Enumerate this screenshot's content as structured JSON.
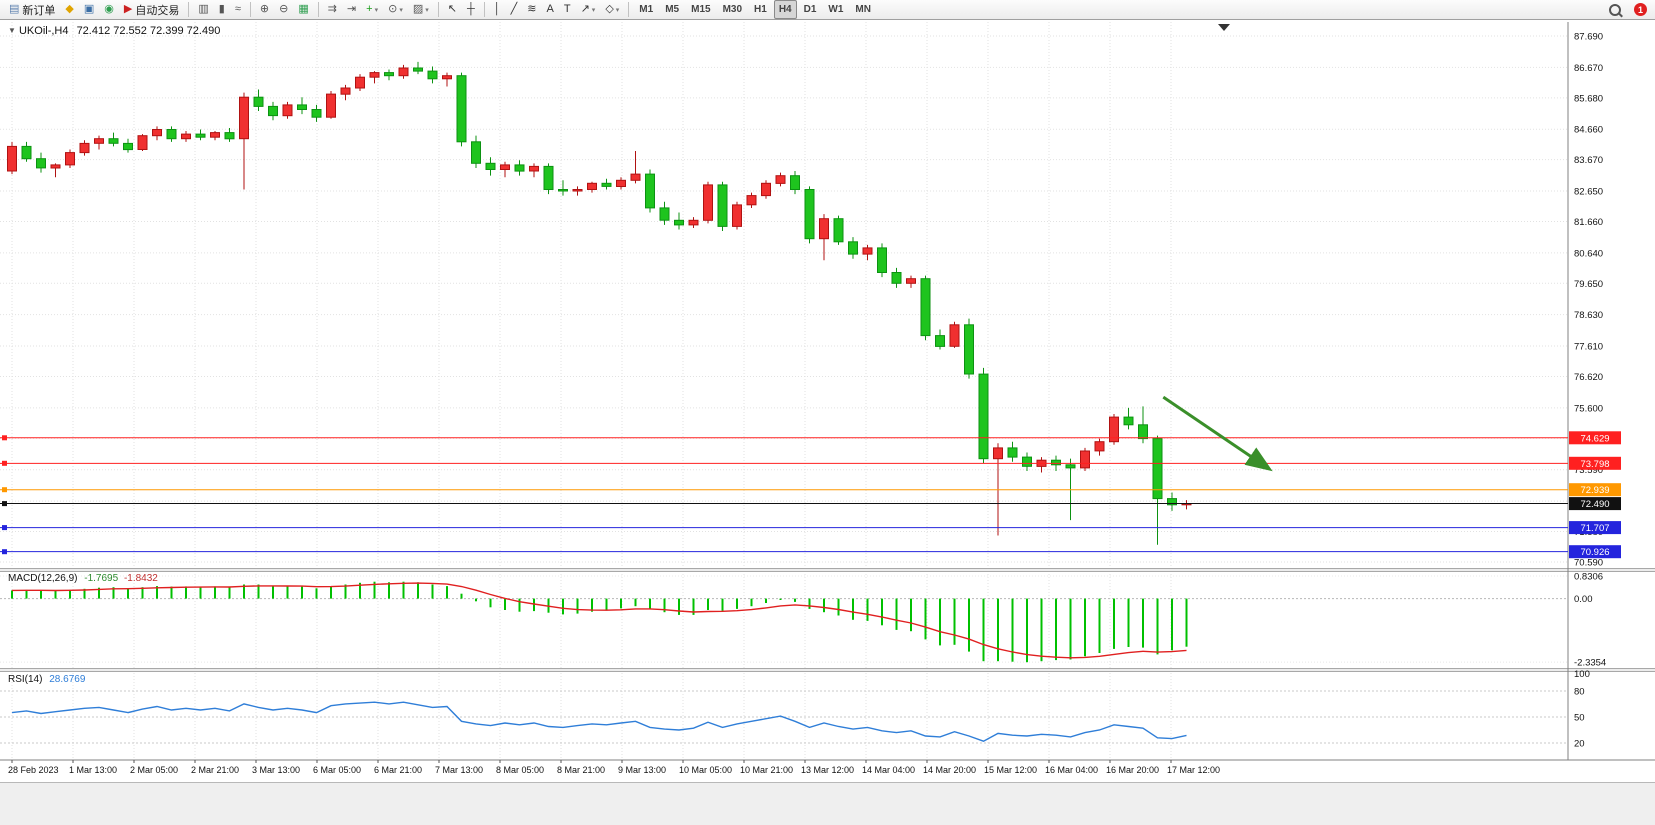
{
  "toolbar": {
    "badge_label": "1",
    "items": [
      {
        "type": "btn",
        "name": "new-order-button",
        "glyph": "▤",
        "glyph_color": "#5b7fae",
        "label": "新订单"
      },
      {
        "type": "btn",
        "name": "chart-window-icon",
        "glyph": "◆",
        "glyph_color": "#e0a400"
      },
      {
        "type": "btn",
        "name": "market-watch-icon",
        "glyph": "▣",
        "glyph_color": "#3b6ea5"
      },
      {
        "type": "btn",
        "name": "signals-icon",
        "glyph": "◉",
        "glyph_color": "#2e9e4f"
      },
      {
        "type": "btn",
        "name": "auto-trading-button",
        "glyph": "▶",
        "glyph_color": "#cc2222",
        "label": "自动交易"
      },
      {
        "type": "sep"
      },
      {
        "type": "btn",
        "name": "bar-chart-button",
        "glyph": "▥",
        "glyph_color": "#555"
      },
      {
        "type": "btn",
        "name": "candlestick-chart-button",
        "glyph": "▮",
        "glyph_color": "#555"
      },
      {
        "type": "btn",
        "name": "line-chart-button",
        "glyph": "≈",
        "glyph_color": "#555"
      },
      {
        "type": "sep"
      },
      {
        "type": "btn",
        "name": "zoom-in-button",
        "glyph": "⊕",
        "glyph_color": "#555"
      },
      {
        "type": "btn",
        "name": "zoom-out-button",
        "glyph": "⊖",
        "glyph_color": "#555"
      },
      {
        "type": "btn",
        "name": "tile-windows-button",
        "glyph": "▦",
        "glyph_color": "#2e9e4f"
      },
      {
        "type": "sep"
      },
      {
        "type": "btn",
        "name": "auto-scroll-button",
        "glyph": "⇉",
        "glyph_color": "#555"
      },
      {
        "type": "btn",
        "name": "chart-shift-button",
        "glyph": "⇥",
        "glyph_color": "#555"
      },
      {
        "type": "btn",
        "name": "add-indicator-button",
        "glyph": "+",
        "glyph_color": "#1d9e1d",
        "caret": true
      },
      {
        "type": "btn",
        "name": "period-button",
        "glyph": "⊙",
        "glyph_color": "#555",
        "caret": true
      },
      {
        "type": "btn",
        "name": "template-button",
        "glyph": "▨",
        "glyph_color": "#555",
        "caret": true
      },
      {
        "type": "sep"
      },
      {
        "type": "btn",
        "name": "cursor-button",
        "glyph": "↖",
        "glyph_color": "#333"
      },
      {
        "type": "btn",
        "name": "crosshair-button",
        "glyph": "┼",
        "glyph_color": "#333"
      },
      {
        "type": "sep"
      },
      {
        "type": "btn",
        "name": "vertical-line-button",
        "glyph": "│",
        "glyph_color": "#333"
      },
      {
        "type": "btn",
        "name": "trendline-button",
        "glyph": "╱",
        "glyph_color": "#333"
      },
      {
        "type": "btn",
        "name": "fibonacci-button",
        "glyph": "≋",
        "glyph_color": "#333"
      },
      {
        "type": "btn",
        "name": "text-label-button",
        "glyph": "A",
        "glyph_color": "#333"
      },
      {
        "type": "btn",
        "name": "text-button",
        "glyph": "T",
        "glyph_color": "#333"
      },
      {
        "type": "btn",
        "name": "arrows-tool-button",
        "glyph": "↗",
        "glyph_color": "#333",
        "caret": true
      },
      {
        "type": "btn",
        "name": "shapes-tool-button",
        "glyph": "◇",
        "glyph_color": "#333",
        "caret": true
      },
      {
        "type": "sep"
      },
      {
        "type": "tf",
        "name": "timeframe-m1-button",
        "label": "M1"
      },
      {
        "type": "tf",
        "name": "timeframe-m5-button",
        "label": "M5"
      },
      {
        "type": "tf",
        "name": "timeframe-m15-button",
        "label": "M15"
      },
      {
        "type": "tf",
        "name": "timeframe-m30-button",
        "label": "M30"
      },
      {
        "type": "tf",
        "name": "timeframe-h1-button",
        "label": "H1"
      },
      {
        "type": "tf",
        "name": "timeframe-h4-button",
        "label": "H4",
        "active": true
      },
      {
        "type": "tf",
        "name": "timeframe-d1-button",
        "label": "D1"
      },
      {
        "type": "tf",
        "name": "timeframe-w1-button",
        "label": "W1"
      },
      {
        "type": "tf",
        "name": "timeframe-mn-button",
        "label": "MN"
      }
    ]
  },
  "chart": {
    "expand_glyph": "▼",
    "symbol": "UKOil-,H4",
    "ohlc": "72.412 72.552 72.399 72.490"
  },
  "price_axis": {
    "labels": [
      "87.690",
      "86.670",
      "85.680",
      "84.660",
      "83.670",
      "82.650",
      "81.660",
      "80.640",
      "79.650",
      "78.630",
      "77.610",
      "76.620",
      "75.600",
      "74.610",
      "73.590",
      "72.570",
      "71.580",
      "70.590"
    ]
  },
  "time_axis": {
    "labels": [
      "28 Feb 2023",
      "1 Mar 13:00",
      "2 Mar 05:00",
      "2 Mar 21:00",
      "3 Mar 13:00",
      "6 Mar 05:00",
      "6 Mar 21:00",
      "7 Mar 13:00",
      "8 Mar 05:00",
      "8 Mar 21:00",
      "9 Mar 13:00",
      "10 Mar 05:00",
      "10 Mar 21:00",
      "13 Mar 12:00",
      "14 Mar 04:00",
      "14 Mar 20:00",
      "15 Mar 12:00",
      "16 Mar 04:00",
      "16 Mar 20:00",
      "17 Mar 12:00"
    ]
  },
  "hlines": [
    {
      "price": 74.629,
      "label": "74.629",
      "color": "#ff2020"
    },
    {
      "price": 73.798,
      "label": "73.798",
      "color": "#ff2020"
    },
    {
      "price": 72.939,
      "label": "72.939",
      "color": "#ff9800"
    },
    {
      "price": 72.49,
      "label": "72.490",
      "color": "#111111",
      "current": true
    },
    {
      "price": 71.707,
      "label": "71.707",
      "color": "#2424dd"
    },
    {
      "price": 70.926,
      "label": "70.926",
      "color": "#2424dd"
    }
  ],
  "indicators": {
    "macd": {
      "label": "MACD(12,26,9)",
      "value_main": "-1.7695",
      "value_signal": "-1.8432",
      "axis": [
        "0.8306",
        "0.00",
        "-2.3354"
      ],
      "histogram_color": "#00c000",
      "signal_color": "#e02020"
    },
    "rsi": {
      "label": "RSI(14)",
      "value": "28.6769",
      "axis": [
        "100",
        "80",
        "50",
        "20"
      ],
      "levels": [
        80,
        50,
        20
      ],
      "line_color": "#2f7ed8"
    }
  },
  "chart_data": {
    "type": "candlestick",
    "symbol": "UKOil-",
    "timeframe": "H4",
    "ohlc_display": {
      "open": "72.412",
      "high": "72.552",
      "low": "72.399",
      "close": "72.490"
    },
    "up_color": "#f03030",
    "down_color": "#1ec41e",
    "price_range": [
      70.59,
      87.69
    ],
    "candles": [
      [
        83.3,
        84.25,
        83.2,
        84.1
      ],
      [
        84.1,
        84.25,
        83.6,
        83.7
      ],
      [
        83.7,
        83.9,
        83.25,
        83.4
      ],
      [
        83.4,
        83.55,
        83.1,
        83.5
      ],
      [
        83.5,
        84.0,
        83.4,
        83.9
      ],
      [
        83.9,
        84.3,
        83.8,
        84.2
      ],
      [
        84.2,
        84.45,
        84.0,
        84.35
      ],
      [
        84.35,
        84.55,
        84.1,
        84.2
      ],
      [
        84.2,
        84.35,
        83.9,
        84.0
      ],
      [
        84.0,
        84.5,
        83.95,
        84.45
      ],
      [
        84.45,
        84.75,
        84.3,
        84.65
      ],
      [
        84.65,
        84.75,
        84.25,
        84.35
      ],
      [
        84.35,
        84.6,
        84.25,
        84.5
      ],
      [
        84.5,
        84.65,
        84.3,
        84.4
      ],
      [
        84.4,
        84.6,
        84.3,
        84.55
      ],
      [
        84.55,
        84.7,
        84.25,
        84.35
      ],
      [
        84.35,
        85.85,
        82.7,
        85.7
      ],
      [
        85.7,
        85.95,
        85.25,
        85.4
      ],
      [
        85.4,
        85.55,
        84.95,
        85.1
      ],
      [
        85.1,
        85.55,
        85.0,
        85.45
      ],
      [
        85.45,
        85.7,
        85.15,
        85.3
      ],
      [
        85.3,
        85.45,
        84.9,
        85.05
      ],
      [
        85.05,
        85.9,
        85.0,
        85.8
      ],
      [
        85.8,
        86.1,
        85.6,
        86.0
      ],
      [
        86.0,
        86.45,
        85.9,
        86.35
      ],
      [
        86.35,
        86.55,
        86.15,
        86.5
      ],
      [
        86.5,
        86.6,
        86.25,
        86.4
      ],
      [
        86.4,
        86.75,
        86.3,
        86.65
      ],
      [
        86.65,
        86.85,
        86.45,
        86.55
      ],
      [
        86.55,
        86.7,
        86.15,
        86.3
      ],
      [
        86.3,
        86.5,
        86.05,
        86.4
      ],
      [
        86.4,
        86.5,
        84.1,
        84.25
      ],
      [
        84.25,
        84.45,
        83.4,
        83.55
      ],
      [
        83.55,
        83.75,
        83.15,
        83.35
      ],
      [
        83.35,
        83.6,
        83.1,
        83.5
      ],
      [
        83.5,
        83.65,
        83.15,
        83.3
      ],
      [
        83.3,
        83.55,
        83.1,
        83.45
      ],
      [
        83.45,
        83.55,
        82.55,
        82.7
      ],
      [
        82.7,
        83.0,
        82.5,
        82.65
      ],
      [
        82.65,
        82.8,
        82.5,
        82.7
      ],
      [
        82.7,
        82.95,
        82.6,
        82.9
      ],
      [
        82.9,
        83.05,
        82.7,
        82.8
      ],
      [
        82.8,
        83.1,
        82.7,
        83.0
      ],
      [
        83.0,
        83.95,
        82.9,
        83.2
      ],
      [
        83.2,
        83.35,
        81.95,
        82.1
      ],
      [
        82.1,
        82.3,
        81.55,
        81.7
      ],
      [
        81.7,
        81.95,
        81.4,
        81.55
      ],
      [
        81.55,
        81.8,
        81.45,
        81.7
      ],
      [
        81.7,
        82.95,
        81.6,
        82.85
      ],
      [
        82.85,
        82.95,
        81.35,
        81.5
      ],
      [
        81.5,
        82.3,
        81.4,
        82.2
      ],
      [
        82.2,
        82.6,
        82.1,
        82.5
      ],
      [
        82.5,
        83.0,
        82.4,
        82.9
      ],
      [
        82.9,
        83.25,
        82.8,
        83.15
      ],
      [
        83.15,
        83.3,
        82.55,
        82.7
      ],
      [
        82.7,
        82.8,
        80.95,
        81.1
      ],
      [
        81.1,
        81.9,
        80.4,
        81.75
      ],
      [
        81.75,
        81.85,
        80.9,
        81.0
      ],
      [
        81.0,
        81.15,
        80.45,
        80.6
      ],
      [
        80.6,
        80.9,
        80.4,
        80.8
      ],
      [
        80.8,
        80.95,
        79.85,
        80.0
      ],
      [
        80.0,
        80.15,
        79.5,
        79.65
      ],
      [
        79.65,
        79.9,
        79.5,
        79.8
      ],
      [
        79.8,
        79.9,
        77.8,
        77.95
      ],
      [
        77.95,
        78.15,
        77.5,
        77.6
      ],
      [
        77.6,
        78.4,
        77.55,
        78.3
      ],
      [
        78.3,
        78.5,
        76.55,
        76.7
      ],
      [
        76.7,
        76.9,
        73.8,
        73.95
      ],
      [
        73.95,
        74.45,
        71.45,
        74.3
      ],
      [
        74.3,
        74.5,
        73.85,
        74.0
      ],
      [
        74.0,
        74.15,
        73.55,
        73.7
      ],
      [
        73.7,
        74.0,
        73.5,
        73.9
      ],
      [
        73.9,
        74.05,
        73.55,
        73.75
      ],
      [
        73.75,
        73.95,
        71.95,
        73.65
      ],
      [
        73.65,
        74.3,
        73.55,
        74.2
      ],
      [
        74.2,
        74.6,
        74.05,
        74.5
      ],
      [
        74.5,
        75.4,
        74.4,
        75.3
      ],
      [
        75.3,
        75.6,
        74.9,
        75.05
      ],
      [
        75.05,
        75.65,
        74.45,
        74.6
      ],
      [
        74.6,
        74.7,
        71.15,
        72.65
      ],
      [
        72.65,
        72.85,
        72.25,
        72.45
      ],
      [
        72.45,
        72.6,
        72.3,
        72.49
      ]
    ],
    "macd": [
      0.3,
      0.32,
      0.3,
      0.28,
      0.32,
      0.36,
      0.4,
      0.42,
      0.38,
      0.42,
      0.46,
      0.44,
      0.45,
      0.44,
      0.45,
      0.42,
      0.52,
      0.52,
      0.46,
      0.46,
      0.44,
      0.38,
      0.45,
      0.52,
      0.58,
      0.62,
      0.6,
      0.62,
      0.6,
      0.52,
      0.46,
      0.18,
      -0.1,
      -0.32,
      -0.42,
      -0.48,
      -0.46,
      -0.52,
      -0.58,
      -0.55,
      -0.48,
      -0.44,
      -0.36,
      -0.28,
      -0.38,
      -0.5,
      -0.6,
      -0.6,
      -0.42,
      -0.45,
      -0.38,
      -0.28,
      -0.16,
      -0.05,
      -0.12,
      -0.38,
      -0.5,
      -0.62,
      -0.78,
      -0.82,
      -0.98,
      -1.15,
      -1.2,
      -1.5,
      -1.72,
      -1.7,
      -1.95,
      -2.3,
      -2.3,
      -2.32,
      -2.34,
      -2.3,
      -2.26,
      -2.24,
      -2.12,
      -2.0,
      -1.85,
      -1.78,
      -1.8,
      -2.05,
      -1.9,
      -1.77
    ],
    "rsi": [
      55,
      57,
      54,
      56,
      58,
      60,
      61,
      58,
      55,
      59,
      62,
      58,
      60,
      58,
      60,
      57,
      65,
      61,
      58,
      60,
      58,
      55,
      63,
      65,
      66,
      67,
      65,
      67,
      64,
      61,
      62,
      45,
      42,
      40,
      43,
      41,
      43,
      39,
      38,
      40,
      42,
      41,
      43,
      45,
      38,
      36,
      35,
      37,
      44,
      38,
      42,
      45,
      48,
      51,
      45,
      38,
      43,
      39,
      36,
      38,
      34,
      32,
      34,
      28,
      27,
      33,
      28,
      22,
      31,
      29,
      28,
      30,
      29,
      27,
      32,
      35,
      41,
      39,
      37,
      26,
      25,
      28.7
    ]
  },
  "annotations": {
    "arrow": {
      "from_index": 79.4,
      "from_price": 75.95,
      "to_index": 86.6,
      "to_price": 73.65,
      "color": "#3a8f2a"
    }
  }
}
